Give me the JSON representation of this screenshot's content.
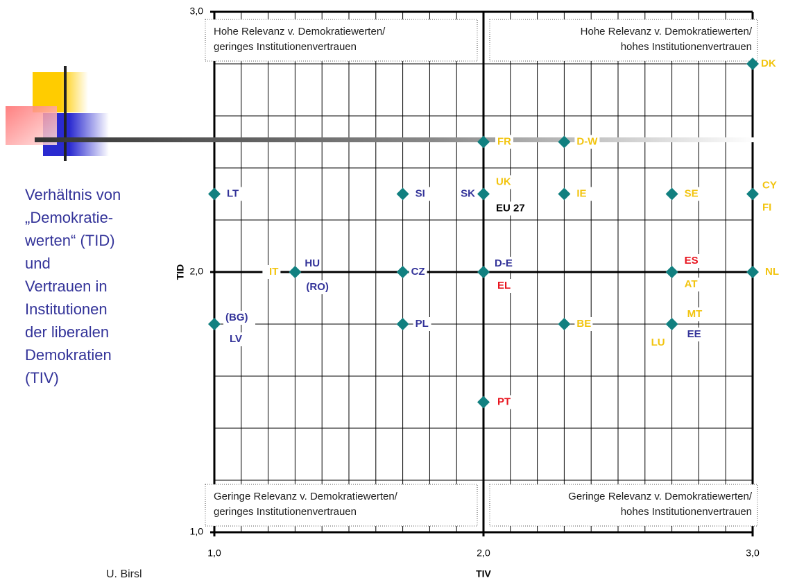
{
  "chart_data": {
    "type": "scatter",
    "x_label": "TIV",
    "y_label": "TID",
    "author": "U. Birsl",
    "description_lines": [
      "Verhältnis von",
      "„Demokratie-",
      "werten“ (TID)",
      "und",
      "Vertrauen in",
      "Institutionen",
      "der liberalen",
      "Demokratien",
      "(TIV)"
    ],
    "quadrants": [
      {
        "lines": [
          "Hohe Relevanz v. Demokratiewerten/",
          "geringes Institutionenvertrauen"
        ]
      },
      {
        "lines": [
          "Hohe Relevanz v. Demokratiewerten/",
          "hohes Institutionenvertrauen"
        ]
      },
      {
        "lines": [
          "Geringe  Relevanz v. Demokratiewerten/",
          "geringes Institutionenvertrauen"
        ]
      },
      {
        "lines": [
          "Geringe Relevanz v. Demokratiewerten/",
          "hohes Institutionenvertrauen"
        ]
      }
    ],
    "xlim": [
      1.0,
      3.0
    ],
    "ylim": [
      1.0,
      3.0
    ],
    "xticks": [
      {
        "value": 1.0,
        "label": "1,0"
      },
      {
        "value": 2.0,
        "label": "2,0"
      },
      {
        "value": 3.0,
        "label": "3,0"
      }
    ],
    "yticks": [
      {
        "value": 1.0,
        "label": "1,0"
      },
      {
        "value": 2.0,
        "label": "2,0"
      },
      {
        "value": 3.0,
        "label": "3,0"
      }
    ],
    "xgrid": [
      1.1,
      1.2,
      1.3,
      1.4,
      1.5,
      1.6,
      1.7,
      1.8,
      1.9,
      2.1,
      2.2,
      2.3,
      2.4,
      2.5,
      2.6,
      2.7,
      2.8,
      2.9
    ],
    "ygrid": [
      1.2,
      1.4,
      1.6,
      1.8,
      2.2,
      2.4,
      2.6,
      2.8
    ],
    "marker_color": "#118080",
    "points": [
      {
        "x": 3.0,
        "y": 2.8,
        "labels": [
          {
            "text": "DK",
            "color": "#f2c40f"
          }
        ]
      },
      {
        "x": 2.0,
        "y": 2.5,
        "labels": [
          {
            "text": "FR",
            "color": "#f2c40f"
          }
        ]
      },
      {
        "x": 2.3,
        "y": 2.5,
        "labels": [
          {
            "text": "D-W",
            "color": "#f2c40f"
          }
        ]
      },
      {
        "x": 1.0,
        "y": 2.3,
        "labels": [
          {
            "text": "LT",
            "color": "#333399"
          }
        ]
      },
      {
        "x": 1.7,
        "y": 2.3,
        "labels": [
          {
            "text": "SI",
            "color": "#333399"
          }
        ]
      },
      {
        "x": 2.0,
        "y": 2.3,
        "labels": [
          {
            "text": "SK",
            "color": "#333399"
          },
          {
            "text": "UK",
            "color": "#f2c40f"
          },
          {
            "text": "EU 27",
            "color": "#000000"
          }
        ]
      },
      {
        "x": 2.3,
        "y": 2.3,
        "labels": [
          {
            "text": "IE",
            "color": "#f2c40f"
          }
        ]
      },
      {
        "x": 2.7,
        "y": 2.3,
        "labels": [
          {
            "text": "SE",
            "color": "#f2c40f"
          }
        ]
      },
      {
        "x": 3.0,
        "y": 2.3,
        "labels": [
          {
            "text": "CY",
            "color": "#f2c40f"
          },
          {
            "text": "FI",
            "color": "#f2c40f"
          }
        ]
      },
      {
        "x": 1.3,
        "y": 2.0,
        "labels": [
          {
            "text": "IT",
            "color": "#f2c40f"
          },
          {
            "text": "HU",
            "color": "#333399"
          },
          {
            "text": "(RO)",
            "color": "#333399"
          }
        ]
      },
      {
        "x": 1.7,
        "y": 2.0,
        "labels": [
          {
            "text": "CZ",
            "color": "#333399"
          }
        ]
      },
      {
        "x": 2.0,
        "y": 2.0,
        "labels": [
          {
            "text": "D-E",
            "color": "#333399"
          },
          {
            "text": "EL",
            "color": "#e8141e"
          }
        ]
      },
      {
        "x": 2.7,
        "y": 2.0,
        "labels": [
          {
            "text": "ES",
            "color": "#e8141e"
          },
          {
            "text": "AT",
            "color": "#f2c40f"
          }
        ]
      },
      {
        "x": 3.0,
        "y": 2.0,
        "labels": [
          {
            "text": "NL",
            "color": "#f2c40f"
          }
        ]
      },
      {
        "x": 1.0,
        "y": 1.8,
        "labels": [
          {
            "text": "(BG)",
            "color": "#333399"
          },
          {
            "text": "LV",
            "color": "#333399"
          }
        ]
      },
      {
        "x": 1.7,
        "y": 1.8,
        "labels": [
          {
            "text": "PL",
            "color": "#333399"
          }
        ]
      },
      {
        "x": 2.3,
        "y": 1.8,
        "labels": [
          {
            "text": "BE",
            "color": "#f2c40f"
          }
        ]
      },
      {
        "x": 2.7,
        "y": 1.8,
        "labels": [
          {
            "text": "MT",
            "color": "#f2c40f"
          },
          {
            "text": "LU",
            "color": "#f2c40f"
          },
          {
            "text": "EE",
            "color": "#333399"
          }
        ]
      },
      {
        "x": 2.0,
        "y": 1.5,
        "labels": [
          {
            "text": "PT",
            "color": "#e8141e"
          }
        ]
      }
    ]
  }
}
